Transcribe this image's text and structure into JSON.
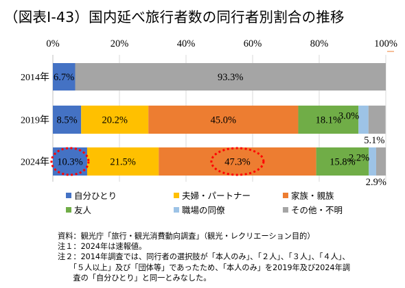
{
  "title": "（図表Ⅰ-43）国内延べ旅行者数の同行者別割合の推移",
  "chart_data": {
    "type": "bar",
    "orientation": "horizontal",
    "stacked": true,
    "percent_stacked": true,
    "categories": [
      "2014年",
      "2019年",
      "2024年"
    ],
    "series": [
      {
        "name": "自分ひとり",
        "color": "#4472C4",
        "values": [
          6.7,
          8.5,
          10.3
        ],
        "labels": [
          "6.7%",
          "8.5%",
          "10.3%"
        ]
      },
      {
        "name": "夫婦・パートナー",
        "color": "#FFC000",
        "values": [
          null,
          20.2,
          21.5
        ],
        "labels": [
          "",
          "20.2%",
          "21.5%"
        ]
      },
      {
        "name": "家族・親族",
        "color": "#ED7D31",
        "values": [
          null,
          45.0,
          47.3
        ],
        "labels": [
          "",
          "45.0%",
          "47.3%"
        ]
      },
      {
        "name": "友人",
        "color": "#70AD47",
        "values": [
          null,
          18.1,
          15.8
        ],
        "labels": [
          "",
          "18.1%",
          "15.8%"
        ]
      },
      {
        "name": "職場の同僚",
        "color": "#9DC3E6",
        "values": [
          null,
          3.0,
          2.2
        ],
        "labels": [
          "",
          "3.0%",
          "2.2%"
        ]
      },
      {
        "name": "その他・不明",
        "color": "#A5A5A5",
        "values": [
          93.3,
          5.1,
          2.9
        ],
        "labels": [
          "93.3%",
          "5.1%",
          "2.9%"
        ]
      }
    ],
    "xlim": [
      0,
      100
    ],
    "x_ticks": [
      "0%",
      "20%",
      "40%",
      "60%",
      "80%",
      "100%"
    ],
    "grid": true,
    "legend_position": "bottom",
    "highlight_color": "#FF0000",
    "highlighted": [
      {
        "category": "2024年",
        "series": "自分ひとり"
      },
      {
        "category": "2024年",
        "series": "家族・親族"
      }
    ]
  },
  "notes": [
    "資料：観光庁「旅行・観光消費動向調査」（観光・レクリエーション目的）",
    "注１：2024年は速報値。",
    "注２：2014年調査では、同行者の選択肢が「本人のみ」、「２人」、「３人」、「４人」、",
    "　　「５人以上」及び「団体等」であったため、「本人のみ」を2019年及び2024年調",
    "　　査の「自分ひとり」と同一とみなした。"
  ]
}
